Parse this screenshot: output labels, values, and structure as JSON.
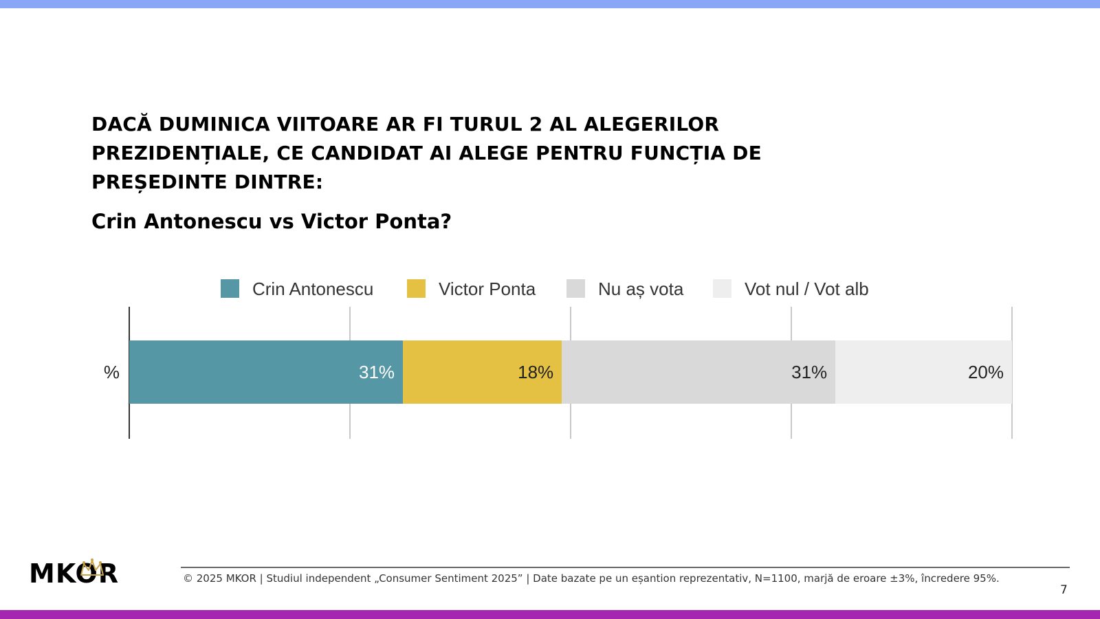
{
  "slide": {
    "question": "DACĂ DUMINICA VIITOARE AR FI TURUL 2 AL ALEGERILOR PREZIDENȚIALE, CE CANDIDAT AI ALEGE PENTRU FUNCȚIA DE PREȘEDINTE DINTRE:",
    "subtitle": "Crin Antonescu vs Victor Ponta?",
    "footer": "© 2025 MKOR | Studiul independent „Consumer Sentiment 2025” | Date bazate pe un eșantion reprezentativ, N=1100, marjă de eroare ±3%, încredere 95%.",
    "page_number": "7",
    "logo_text": "MKOR",
    "colors": {
      "top_bar": "#8aa7f7",
      "bottom_bar": "#a526b0",
      "crown": "#c9a34a"
    }
  },
  "chart_data": {
    "type": "bar",
    "orientation": "horizontal",
    "stacked": true,
    "categories": [
      "%"
    ],
    "series": [
      {
        "name": "Crin Antonescu",
        "values": [
          31
        ],
        "label": "31%",
        "color": "#5697a6",
        "label_color": "#ffffff"
      },
      {
        "name": "Victor Ponta",
        "values": [
          18
        ],
        "label": "18%",
        "color": "#e4c143",
        "label_color": "#222222"
      },
      {
        "name": "Nu aș vota",
        "values": [
          31
        ],
        "label": "31%",
        "color": "#d9d9d9",
        "label_color": "#222222"
      },
      {
        "name": "Vot nul / Vot alb",
        "values": [
          20
        ],
        "label": "20%",
        "color": "#eeeeee",
        "label_color": "#222222"
      }
    ],
    "xlim": [
      0,
      100
    ],
    "gridlines": [
      0,
      25,
      50,
      75,
      100
    ],
    "grid": true,
    "legend_position": "top"
  }
}
